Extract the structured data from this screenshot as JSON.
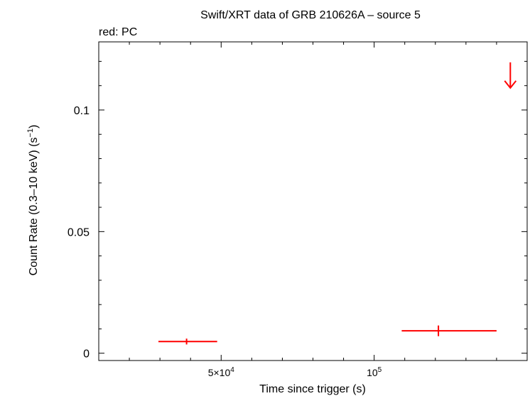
{
  "chart_data": {
    "type": "scatter",
    "title": "Swift/XRT data of GRB 210626A – source 5",
    "subtitle": "red: PC",
    "xlabel": "Time since trigger (s)",
    "ylabel_main": "Count Rate (0.3–10 keV) (s",
    "ylabel_sup": "−1",
    "ylabel_end": ")",
    "xlim": [
      10000,
      150000
    ],
    "ylim": [
      -0.003,
      0.128
    ],
    "x_ticks": [
      {
        "value": 50000,
        "base": "5×10",
        "exp": "4"
      },
      {
        "value": 100000,
        "base": "10",
        "exp": "5"
      }
    ],
    "y_ticks": [
      {
        "value": 0,
        "label": "0"
      },
      {
        "value": 0.05,
        "label": "0.05"
      },
      {
        "value": 0.1,
        "label": "0.1"
      }
    ],
    "color": "#ff0000",
    "points": [
      {
        "x": 38700,
        "xerr_lo": 9200,
        "xerr_hi": 10000,
        "y": 0.0048,
        "yerr": 0.0012
      },
      {
        "x": 121000,
        "xerr_lo": 12000,
        "xerr_hi": 19000,
        "y": 0.0092,
        "yerr": 0.0022
      }
    ],
    "upper_limits": [
      {
        "x": 144500,
        "y": 0.112
      }
    ]
  }
}
